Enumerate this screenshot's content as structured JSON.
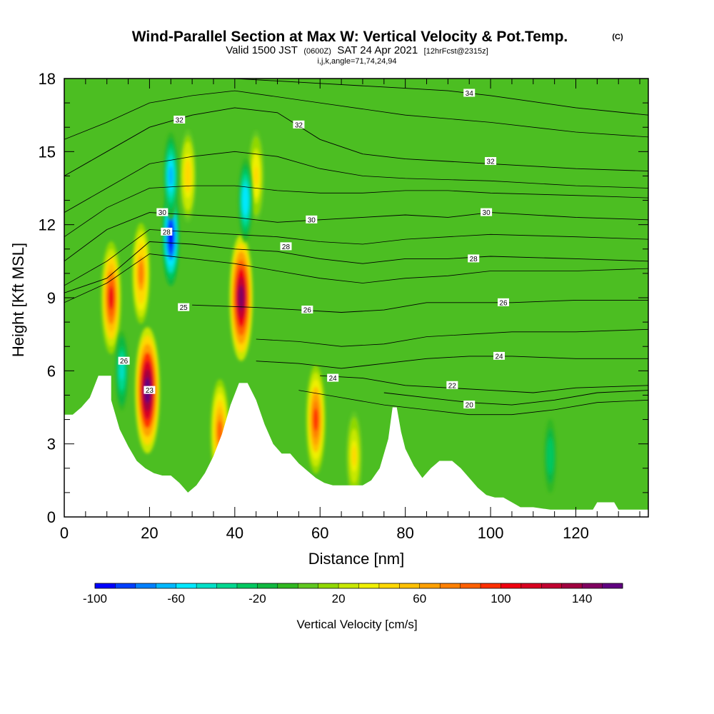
{
  "header": {
    "title": "Wind-Parallel Section at Max W: Vertical Velocity & Pot.Temp.",
    "title_mark": "(C)",
    "valid_prefix": "Valid 1500 JST",
    "valid_utc": "(0600Z)",
    "valid_date": "SAT 24 Apr 2021",
    "forecast": "[12hrFcst@2315z]",
    "indices": "i,j,k,angle=71,74,24,94"
  },
  "chart_data": {
    "type": "heatmap",
    "xlabel": "Distance [nm]",
    "ylabel": "Height [Kft MSL]",
    "xlim": [
      0,
      137
    ],
    "ylim": [
      0,
      18
    ],
    "x_ticks": [
      0,
      20,
      40,
      60,
      80,
      100,
      120
    ],
    "y_ticks": [
      0,
      3,
      6,
      9,
      12,
      15,
      18
    ],
    "grid": false,
    "colorbar": {
      "label": "Vertical Velocity [cm/s]",
      "min": -100,
      "max": 160,
      "step": 10,
      "tick_labels": [
        "-100",
        "-60",
        "-20",
        "20",
        "60",
        "100",
        "140"
      ],
      "tick_values": [
        -100,
        -60,
        -20,
        20,
        60,
        100,
        140
      ],
      "colors": [
        "#0000ff",
        "#0040ff",
        "#0080ff",
        "#00b8ff",
        "#00e8ff",
        "#00e0c8",
        "#00d890",
        "#00c860",
        "#10b840",
        "#30b820",
        "#60c820",
        "#90d800",
        "#c8e800",
        "#f0f000",
        "#ffd800",
        "#ffc000",
        "#ffa000",
        "#ff8000",
        "#ff6000",
        "#ff3000",
        "#f00010",
        "#d80020",
        "#c00030",
        "#a00040",
        "#800060",
        "#600080"
      ]
    },
    "terrain": [
      [
        0,
        4.2
      ],
      [
        2,
        4.2
      ],
      [
        4,
        4.5
      ],
      [
        6,
        4.9
      ],
      [
        8,
        5.8
      ],
      [
        11,
        5.8
      ],
      [
        11,
        4.8
      ],
      [
        13,
        3.6
      ],
      [
        15,
        2.9
      ],
      [
        17,
        2.3
      ],
      [
        19,
        2
      ],
      [
        21,
        1.8
      ],
      [
        23,
        1.7
      ],
      [
        25,
        1.7
      ],
      [
        27,
        1.4
      ],
      [
        29,
        1
      ],
      [
        31,
        1.3
      ],
      [
        33,
        1.8
      ],
      [
        35,
        2.5
      ],
      [
        37,
        3.4
      ],
      [
        39,
        4.6
      ],
      [
        41,
        5.5
      ],
      [
        43,
        5.5
      ],
      [
        45,
        4.8
      ],
      [
        47,
        3.8
      ],
      [
        49,
        3
      ],
      [
        51,
        2.6
      ],
      [
        53,
        2.6
      ],
      [
        55,
        2.2
      ],
      [
        57,
        1.9
      ],
      [
        59,
        1.6
      ],
      [
        61,
        1.4
      ],
      [
        63,
        1.3
      ],
      [
        65,
        1.3
      ],
      [
        70,
        1.3
      ],
      [
        72,
        1.5
      ],
      [
        74,
        2
      ],
      [
        76,
        3.2
      ],
      [
        77,
        4.5
      ],
      [
        78,
        4.5
      ],
      [
        79,
        3.5
      ],
      [
        80,
        2.8
      ],
      [
        82,
        2.1
      ],
      [
        84,
        1.6
      ],
      [
        86,
        2
      ],
      [
        88,
        2.3
      ],
      [
        91,
        2.3
      ],
      [
        93,
        2
      ],
      [
        95,
        1.6
      ],
      [
        97,
        1.2
      ],
      [
        99,
        0.9
      ],
      [
        101,
        0.8
      ],
      [
        103,
        0.8
      ],
      [
        105,
        0.6
      ],
      [
        107,
        0.4
      ],
      [
        110,
        0.4
      ],
      [
        114,
        0.3
      ],
      [
        120,
        0.3
      ],
      [
        124,
        0.3
      ],
      [
        125,
        0.6
      ],
      [
        129,
        0.6
      ],
      [
        130,
        0.3
      ],
      [
        137,
        0.3
      ]
    ],
    "updrafts": [
      {
        "x": 19.5,
        "z": 5.2,
        "w": 160
      },
      {
        "x": 41.5,
        "z": 9.0,
        "w": 140
      },
      {
        "x": 11.0,
        "z": 9.0,
        "w": 100
      },
      {
        "x": 59.0,
        "z": 4.0,
        "w": 90
      },
      {
        "x": 18.0,
        "z": 10.0,
        "w": 70
      },
      {
        "x": 45.0,
        "z": 14.0,
        "w": 45
      },
      {
        "x": 29.0,
        "z": 14.0,
        "w": 50
      },
      {
        "x": 36.5,
        "z": 3.5,
        "w": 80
      },
      {
        "x": 68.0,
        "z": 2.5,
        "w": 40
      }
    ],
    "downdrafts": [
      {
        "x": 25.0,
        "z": 11.5,
        "w": -100
      },
      {
        "x": 25.0,
        "z": 14.0,
        "w": -70
      },
      {
        "x": 42.5,
        "z": 13.0,
        "w": -60
      },
      {
        "x": 13.5,
        "z": 6.0,
        "w": -45
      },
      {
        "x": 114.0,
        "z": 2.5,
        "w": -30
      }
    ],
    "theta_contours": [
      {
        "label": "20",
        "points": [
          [
            75,
            5.1
          ],
          [
            85,
            4.9
          ],
          [
            95,
            4.7
          ],
          [
            105,
            4.6
          ],
          [
            115,
            4.8
          ],
          [
            125,
            5.1
          ],
          [
            137,
            5.2
          ]
        ]
      },
      {
        "label": "22",
        "points": [
          [
            60,
            5.8
          ],
          [
            70,
            5.7
          ],
          [
            80,
            5.4
          ],
          [
            90,
            5.3
          ],
          [
            100,
            5.2
          ],
          [
            110,
            5.1
          ],
          [
            120,
            5.3
          ],
          [
            137,
            5.4
          ]
        ]
      },
      {
        "label": "24",
        "points": [
          [
            45,
            6.4
          ],
          [
            55,
            6.3
          ],
          [
            65,
            6.1
          ],
          [
            75,
            6.3
          ],
          [
            85,
            6.5
          ],
          [
            95,
            6.6
          ],
          [
            105,
            6.6
          ],
          [
            120,
            6.5
          ],
          [
            137,
            6.5
          ]
        ]
      },
      {
        "label": "26",
        "points": [
          [
            30,
            8.7
          ],
          [
            45,
            8.6
          ],
          [
            55,
            8.5
          ],
          [
            65,
            8.4
          ],
          [
            75,
            8.5
          ],
          [
            85,
            8.8
          ],
          [
            95,
            8.8
          ],
          [
            105,
            8.8
          ],
          [
            120,
            8.9
          ],
          [
            137,
            8.9
          ]
        ]
      },
      {
        "label": "28",
        "points": [
          [
            0,
            9.2
          ],
          [
            10,
            9.8
          ],
          [
            20,
            11.3
          ],
          [
            30,
            11.2
          ],
          [
            40,
            11.0
          ],
          [
            50,
            10.9
          ],
          [
            60,
            10.6
          ],
          [
            70,
            10.4
          ],
          [
            80,
            10.6
          ],
          [
            90,
            10.6
          ],
          [
            100,
            10.7
          ],
          [
            120,
            10.6
          ],
          [
            137,
            10.5
          ]
        ]
      },
      {
        "label": "30",
        "points": [
          [
            0,
            10.5
          ],
          [
            10,
            11.8
          ],
          [
            20,
            12.5
          ],
          [
            30,
            12.4
          ],
          [
            40,
            12.3
          ],
          [
            50,
            12.1
          ],
          [
            60,
            12.2
          ],
          [
            70,
            12.3
          ],
          [
            80,
            12.4
          ],
          [
            90,
            12.3
          ],
          [
            100,
            12.5
          ],
          [
            120,
            12.3
          ],
          [
            137,
            12.2
          ]
        ]
      },
      {
        "label": "32",
        "points": [
          [
            0,
            14.0
          ],
          [
            10,
            15.0
          ],
          [
            20,
            16.0
          ],
          [
            30,
            16.5
          ],
          [
            40,
            16.8
          ],
          [
            50,
            16.6
          ],
          [
            60,
            15.5
          ],
          [
            70,
            14.9
          ],
          [
            80,
            14.7
          ],
          [
            90,
            14.6
          ],
          [
            100,
            14.5
          ],
          [
            120,
            14.3
          ],
          [
            137,
            14.2
          ]
        ]
      },
      {
        "label": "34",
        "points": [
          [
            40,
            18.0
          ],
          [
            60,
            17.8
          ],
          [
            80,
            17.6
          ],
          [
            90,
            17.5
          ],
          [
            100,
            17.3
          ],
          [
            120,
            16.8
          ],
          [
            137,
            16.5
          ]
        ]
      }
    ],
    "plain_contours": [
      [
        [
          0,
          8.8
        ],
        [
          10,
          9.6
        ],
        [
          20,
          10.8
        ],
        [
          30,
          10.6
        ],
        [
          40,
          10.4
        ],
        [
          50,
          10.1
        ],
        [
          60,
          9.8
        ],
        [
          70,
          9.6
        ],
        [
          80,
          9.8
        ],
        [
          90,
          9.9
        ],
        [
          100,
          10.1
        ],
        [
          120,
          10.1
        ],
        [
          137,
          10.2
        ]
      ],
      [
        [
          0,
          9.5
        ],
        [
          10,
          10.5
        ],
        [
          20,
          11.8
        ],
        [
          30,
          11.7
        ],
        [
          40,
          11.6
        ],
        [
          50,
          11.5
        ],
        [
          60,
          11.3
        ],
        [
          70,
          11.2
        ],
        [
          80,
          11.4
        ],
        [
          90,
          11.5
        ],
        [
          100,
          11.6
        ],
        [
          120,
          11.5
        ],
        [
          137,
          11.4
        ]
      ],
      [
        [
          0,
          11.5
        ],
        [
          10,
          12.7
        ],
        [
          20,
          13.5
        ],
        [
          30,
          13.6
        ],
        [
          40,
          13.6
        ],
        [
          50,
          13.4
        ],
        [
          60,
          13.3
        ],
        [
          70,
          13.3
        ],
        [
          80,
          13.4
        ],
        [
          90,
          13.4
        ],
        [
          100,
          13.3
        ],
        [
          120,
          13.2
        ],
        [
          137,
          13.1
        ]
      ],
      [
        [
          0,
          15.5
        ],
        [
          10,
          16.2
        ],
        [
          20,
          17.0
        ],
        [
          30,
          17.3
        ],
        [
          40,
          17.5
        ],
        [
          60,
          17.0
        ],
        [
          80,
          16.5
        ],
        [
          100,
          16.2
        ],
        [
          120,
          15.8
        ],
        [
          137,
          15.6
        ]
      ],
      [
        [
          0,
          12.5
        ],
        [
          10,
          13.5
        ],
        [
          20,
          14.5
        ],
        [
          30,
          14.8
        ],
        [
          40,
          15.0
        ],
        [
          50,
          14.8
        ],
        [
          60,
          14.3
        ],
        [
          70,
          14.0
        ],
        [
          80,
          13.9
        ],
        [
          100,
          13.8
        ],
        [
          120,
          13.6
        ],
        [
          137,
          13.5
        ]
      ],
      [
        [
          45,
          7.3
        ],
        [
          55,
          7.2
        ],
        [
          65,
          7.0
        ],
        [
          75,
          7.1
        ],
        [
          85,
          7.4
        ],
        [
          95,
          7.5
        ],
        [
          105,
          7.6
        ],
        [
          120,
          7.6
        ],
        [
          137,
          7.7
        ]
      ],
      [
        [
          55,
          5.2
        ],
        [
          65,
          4.9
        ],
        [
          75,
          4.6
        ],
        [
          85,
          4.4
        ],
        [
          95,
          4.2
        ],
        [
          105,
          4.2
        ],
        [
          115,
          4.4
        ],
        [
          125,
          4.7
        ],
        [
          137,
          4.8
        ]
      ]
    ],
    "contour_labels": [
      {
        "label": "34",
        "x": 95,
        "z": 17.4
      },
      {
        "label": "32",
        "x": 27,
        "z": 16.3
      },
      {
        "label": "32",
        "x": 55,
        "z": 16.1
      },
      {
        "label": "32",
        "x": 100,
        "z": 14.6
      },
      {
        "label": "30",
        "x": 23,
        "z": 12.5
      },
      {
        "label": "30",
        "x": 58,
        "z": 12.2
      },
      {
        "label": "30",
        "x": 99,
        "z": 12.5
      },
      {
        "label": "28",
        "x": 24,
        "z": 11.7
      },
      {
        "label": "28",
        "x": 52,
        "z": 11.1
      },
      {
        "label": "28",
        "x": 96,
        "z": 10.6
      },
      {
        "label": "26",
        "x": 103,
        "z": 8.8
      },
      {
        "label": "26",
        "x": 57,
        "z": 8.5
      },
      {
        "label": "25",
        "x": 28,
        "z": 8.6
      },
      {
        "label": "26",
        "x": 14,
        "z": 6.4
      },
      {
        "label": "23",
        "x": 20,
        "z": 5.2
      },
      {
        "label": "24",
        "x": 102,
        "z": 6.6
      },
      {
        "label": "24",
        "x": 63,
        "z": 5.7
      },
      {
        "label": "22",
        "x": 91,
        "z": 5.4
      },
      {
        "label": "20",
        "x": 95,
        "z": 4.6
      }
    ]
  }
}
